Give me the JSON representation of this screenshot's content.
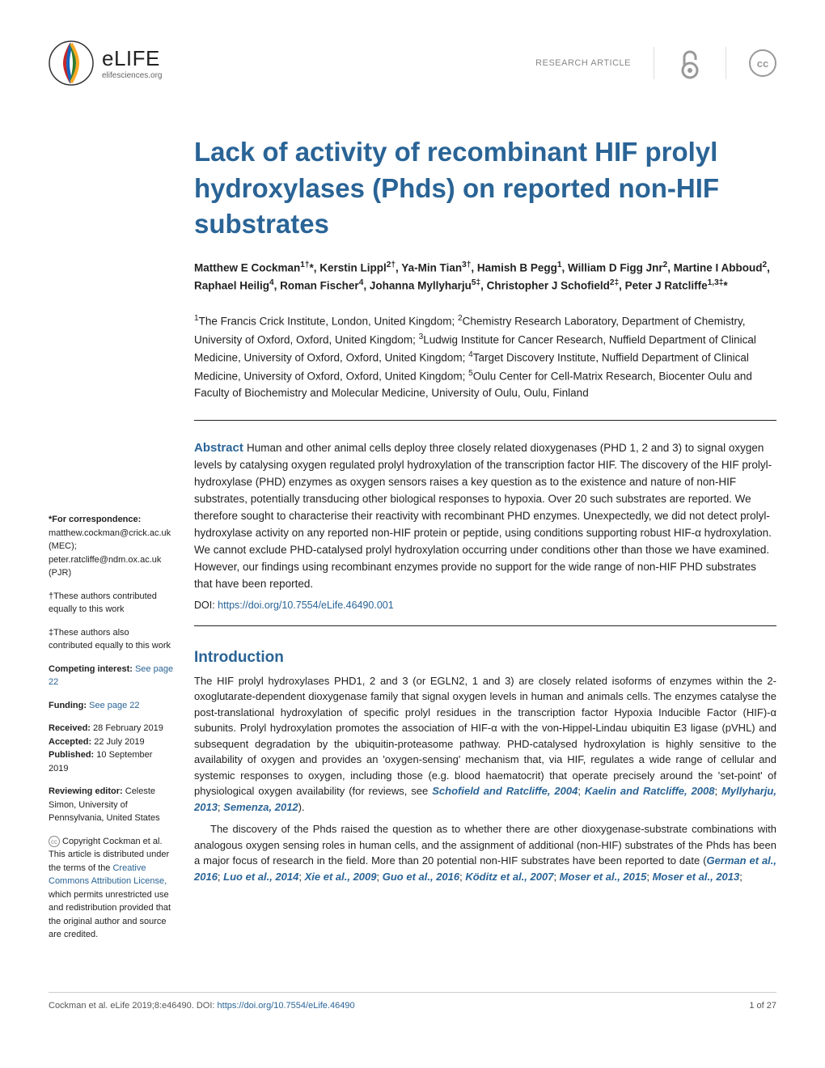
{
  "header": {
    "logo_name": "eLIFE",
    "logo_url": "elifesciences.org",
    "article_type": "RESEARCH ARTICLE"
  },
  "title": "Lack of activity of recombinant HIF prolyl hydroxylases (Phds) on reported non-HIF substrates",
  "authors_html": "Matthew E Cockman<sup>1†</sup>*, Kerstin Lippl<sup>2†</sup>, Ya-Min Tian<sup>3†</sup>, Hamish B Pegg<sup>1</sup>, William D Figg Jnr<sup>2</sup>, Martine I Abboud<sup>2</sup>, Raphael Heilig<sup>4</sup>, Roman Fischer<sup>4</sup>, Johanna Myllyharju<sup>5‡</sup>, Christopher J Schofield<sup>2‡</sup>, Peter J Ratcliffe<sup>1,3‡</sup>*",
  "affiliations_html": "<sup>1</sup>The Francis Crick Institute, London, United Kingdom; <sup>2</sup>Chemistry Research Laboratory, Department of Chemistry, University of Oxford, Oxford, United Kingdom; <sup>3</sup>Ludwig Institute for Cancer Research, Nuffield Department of Clinical Medicine, University of Oxford, Oxford, United Kingdom; <sup>4</sup>Target Discovery Institute, Nuffield Department of Clinical Medicine, University of Oxford, Oxford, United Kingdom; <sup>5</sup>Oulu Center for Cell-Matrix Research, Biocenter Oulu and Faculty of Biochemistry and Molecular Medicine, University of Oulu, Oulu, Finland",
  "abstract": "Human and other animal cells deploy three closely related dioxygenases (PHD 1, 2 and 3) to signal oxygen levels by catalysing oxygen regulated prolyl hydroxylation of the transcription factor HIF. The discovery of the HIF prolyl-hydroxylase (PHD) enzymes as oxygen sensors raises a key question as to the existence and nature of non-HIF substrates, potentially transducing other biological responses to hypoxia. Over 20 such substrates are reported. We therefore sought to characterise their reactivity with recombinant PHD enzymes. Unexpectedly, we did not detect prolyl-hydroxylase activity on any reported non-HIF protein or peptide, using conditions supporting robust HIF-α hydroxylation. We cannot exclude PHD-catalysed prolyl hydroxylation occurring under conditions other than those we have examined. However, our findings using recombinant enzymes provide no support for the wide range of non-HIF PHD substrates that have been reported.",
  "abstract_doi": "https://doi.org/10.7554/eLife.46490.001",
  "sidebar": {
    "correspondence_label": "*For correspondence:",
    "correspondence_1": "matthew.cockman@crick.ac.uk (MEC);",
    "correspondence_2": "peter.ratcliffe@ndm.ox.ac.uk (PJR)",
    "dagger_note": "†These authors contributed equally to this work",
    "ddagger_note": "‡These authors also contributed equally to this work",
    "competing_label": "Competing interest:",
    "competing_link": "See page 22",
    "funding_label": "Funding:",
    "funding_link": "See page 22",
    "received_label": "Received:",
    "received": "28 February 2019",
    "accepted_label": "Accepted:",
    "accepted": "22 July 2019",
    "published_label": "Published:",
    "published": "10 September 2019",
    "editor_label": "Reviewing editor:",
    "editor": "Celeste Simon, University of Pennsylvania, United States",
    "copyright_text": "Copyright Cockman et al. This article is distributed under the terms of the ",
    "cc_link": "Creative Commons Attribution License,",
    "copyright_tail": " which permits unrestricted use and redistribution provided that the original author and source are credited."
  },
  "intro_heading": "Introduction",
  "intro_p1_html": "The HIF prolyl hydroxylases PHD1, 2 and 3 (or EGLN2, 1 and 3) are closely related isoforms of enzymes within the 2-oxoglutarate-dependent dioxygenase family that signal oxygen levels in human and animals cells. The enzymes catalyse the post-translational hydroxylation of specific prolyl residues in the transcription factor Hypoxia Inducible Factor (HIF)-α subunits. Prolyl hydroxylation promotes the association of HIF-α with the von-Hippel-Lindau ubiquitin E3 ligase (pVHL) and subsequent degradation by the ubiquitin-proteasome pathway. PHD-catalysed hydroxylation is highly sensitive to the availability of oxygen and provides an 'oxygen-sensing' mechanism that, via HIF, regulates a wide range of cellular and systemic responses to oxygen, including those (e.g. blood haematocrit) that operate precisely around the 'set-point' of physiological oxygen availability (for reviews, see <span class=\"ref\">Schofield and Ratcliffe, 2004</span>; <span class=\"ref\">Kaelin and Ratcliffe, 2008</span>; <span class=\"ref\">Myllyharju, 2013</span>; <span class=\"ref\">Semenza, 2012</span>).",
  "intro_p2_html": "The discovery of the Phds raised the question as to whether there are other dioxygenase-substrate combinations with analogous oxygen sensing roles in human cells, and the assignment of additional (non-HIF) substrates of the Phds has been a major focus of research in the field. More than 20 potential non-HIF substrates have been reported to date (<span class=\"ref\">German et al., 2016</span>; <span class=\"ref\">Luo et al., 2014</span>; <span class=\"ref\">Xie et al., 2009</span>; <span class=\"ref\">Guo et al., 2016</span>; <span class=\"ref\">Köditz et al., 2007</span>; <span class=\"ref\">Moser et al., 2015</span>; <span class=\"ref\">Moser et al., 2013</span>;",
  "footer": {
    "citation": "Cockman et al. eLife 2019;8:e46490.",
    "doi_label": "DOI:",
    "doi": "https://doi.org/10.7554/eLife.46490",
    "page": "1 of 27"
  },
  "colors": {
    "primary": "#2a6496",
    "text": "#222222",
    "muted": "#888888"
  }
}
